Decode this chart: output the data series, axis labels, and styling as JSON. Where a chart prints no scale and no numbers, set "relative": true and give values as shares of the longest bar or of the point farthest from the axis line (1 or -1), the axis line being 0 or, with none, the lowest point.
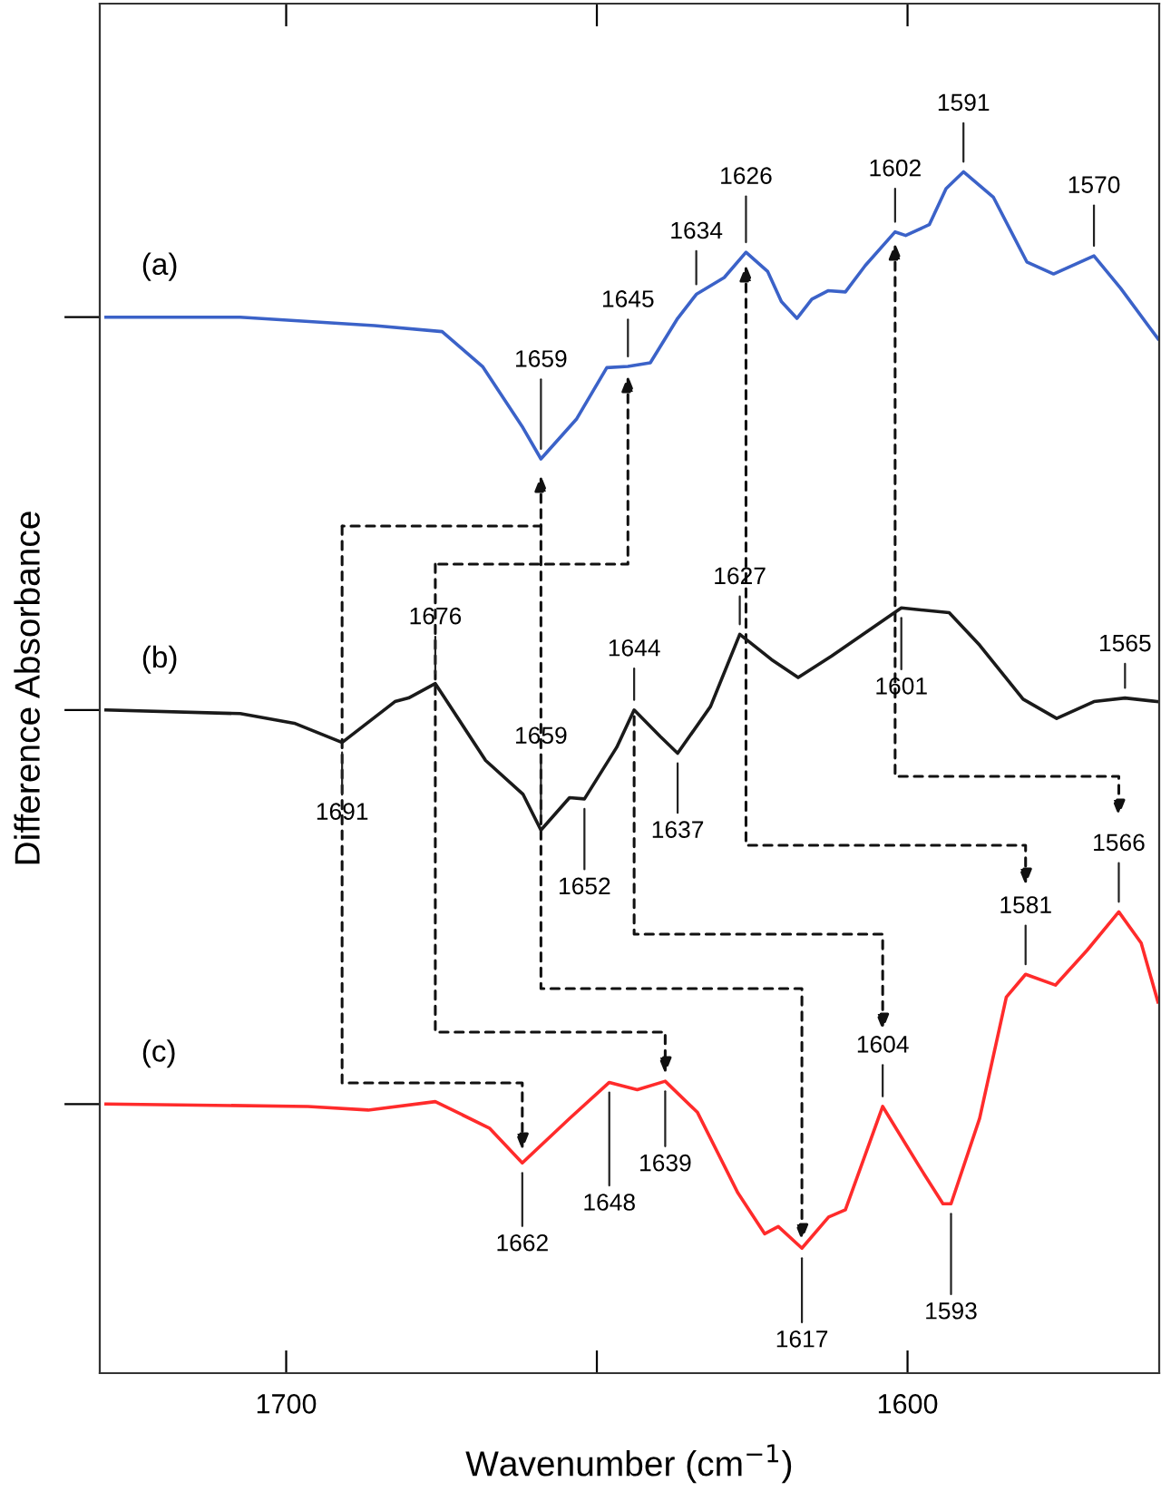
{
  "chart_data": {
    "type": "line",
    "xlabel": "Wavenumber (cm$^{−1}$)",
    "ylabel": "Difference Absorbance",
    "relative": true,
    "xlim": [
      1730,
      1559.5
    ],
    "xticks": [
      1700,
      {
        "value": 1650,
        "label": null
      },
      1600
    ],
    "series": [
      {
        "name": "(a)",
        "color": "#3b62c8",
        "x": [
          1729,
          1707.4,
          1685.8,
          1674.9,
          1668.4,
          1661.9,
          1659,
          1653.3,
          1648.4,
          1645,
          1641.4,
          1637,
          1634,
          1629.5,
          1626,
          1622.5,
          1620.3,
          1617.8,
          1615.4,
          1612.8,
          1610,
          1606.8,
          1602,
          1600.3,
          1596.5,
          1593.8,
          1591,
          1586.2,
          1580.8,
          1576.5,
          1570,
          1565.7,
          1559.7
        ],
        "values": [
          0.879,
          0.879,
          0.872,
          0.867,
          0.838,
          0.787,
          0.761,
          0.794,
          0.837,
          0.838,
          0.841,
          0.878,
          0.898,
          0.912,
          0.933,
          0.917,
          0.892,
          0.878,
          0.894,
          0.901,
          0.9,
          0.922,
          0.95,
          0.947,
          0.956,
          0.986,
          1.0,
          0.979,
          0.925,
          0.915,
          0.93,
          0.903,
          0.861
        ]
      },
      {
        "name": "(b)",
        "color": "#1a1a1a",
        "x": [
          1729,
          1707.4,
          1698.7,
          1691,
          1682.5,
          1680.3,
          1676,
          1667.9,
          1661.9,
          1659,
          1654.4,
          1652,
          1646.8,
          1644,
          1639.8,
          1637,
          1631.7,
          1627,
          1621.9,
          1617.6,
          1612.2,
          1601,
          1593.3,
          1588.4,
          1581.4,
          1576,
          1570,
          1565,
          1559.7
        ],
        "values": [
          0.552,
          0.549,
          0.541,
          0.525,
          0.559,
          0.562,
          0.574,
          0.51,
          0.482,
          0.452,
          0.479,
          0.478,
          0.521,
          0.552,
          0.53,
          0.516,
          0.555,
          0.615,
          0.594,
          0.579,
          0.597,
          0.637,
          0.633,
          0.606,
          0.561,
          0.545,
          0.559,
          0.562,
          0.559
        ]
      },
      {
        "name": "(c)",
        "color": "#ff2b2b",
        "x": [
          1729,
          1696.5,
          1686.8,
          1676,
          1667.3,
          1662,
          1654.4,
          1648,
          1643.5,
          1639,
          1633.8,
          1627.3,
          1623,
          1620.8,
          1617,
          1612.7,
          1610,
          1604,
          1598.1,
          1594.3,
          1593,
          1588.4,
          1584.1,
          1581,
          1576.2,
          1571.1,
          1566,
          1562.4,
          1559.7
        ],
        "values": [
          0.224,
          0.222,
          0.219,
          0.226,
          0.204,
          0.175,
          0.212,
          0.242,
          0.236,
          0.243,
          0.217,
          0.15,
          0.116,
          0.122,
          0.104,
          0.13,
          0.136,
          0.222,
          0.172,
          0.141,
          0.141,
          0.212,
          0.313,
          0.332,
          0.323,
          0.352,
          0.384,
          0.358,
          0.309
        ]
      }
    ],
    "annotations": [
      {
        "text": "1659",
        "x": 1659,
        "y": 0.761
      },
      {
        "text": "1645",
        "x": 1645,
        "y": 0.838
      },
      {
        "text": "1634",
        "x": 1634,
        "y": 0.898
      },
      {
        "text": "1626",
        "x": 1626,
        "y": 0.933
      },
      {
        "text": "1602",
        "x": 1602,
        "y": 0.95
      },
      {
        "text": "1591",
        "x": 1591,
        "y": 1.0
      },
      {
        "text": "1570",
        "x": 1570,
        "y": 0.93
      },
      {
        "text": "1676",
        "x": 1676,
        "y": 0.574
      },
      {
        "text": "1691",
        "x": 1691,
        "y": 0.525
      },
      {
        "text": "1659",
        "x": 1659,
        "y": 0.452
      },
      {
        "text": "1652",
        "x": 1652,
        "y": 0.478
      },
      {
        "text": "1644",
        "x": 1644,
        "y": 0.552
      },
      {
        "text": "1637",
        "x": 1637,
        "y": 0.516
      },
      {
        "text": "1627",
        "x": 1627,
        "y": 0.615
      },
      {
        "text": "1601",
        "x": 1601,
        "y": 0.637
      },
      {
        "text": "1565",
        "x": 1565,
        "y": 0.562
      },
      {
        "text": "1662",
        "x": 1662,
        "y": 0.175
      },
      {
        "text": "1648",
        "x": 1648,
        "y": 0.242
      },
      {
        "text": "1639",
        "x": 1639,
        "y": 0.243
      },
      {
        "text": "1617",
        "x": 1617,
        "y": 0.104
      },
      {
        "text": "1604",
        "x": 1604,
        "y": 0.222
      },
      {
        "text": "1593",
        "x": 1593,
        "y": 0.141
      },
      {
        "text": "1581",
        "x": 1581,
        "y": 0.332
      },
      {
        "text": "1566",
        "x": 1566,
        "y": 0.384
      }
    ]
  }
}
